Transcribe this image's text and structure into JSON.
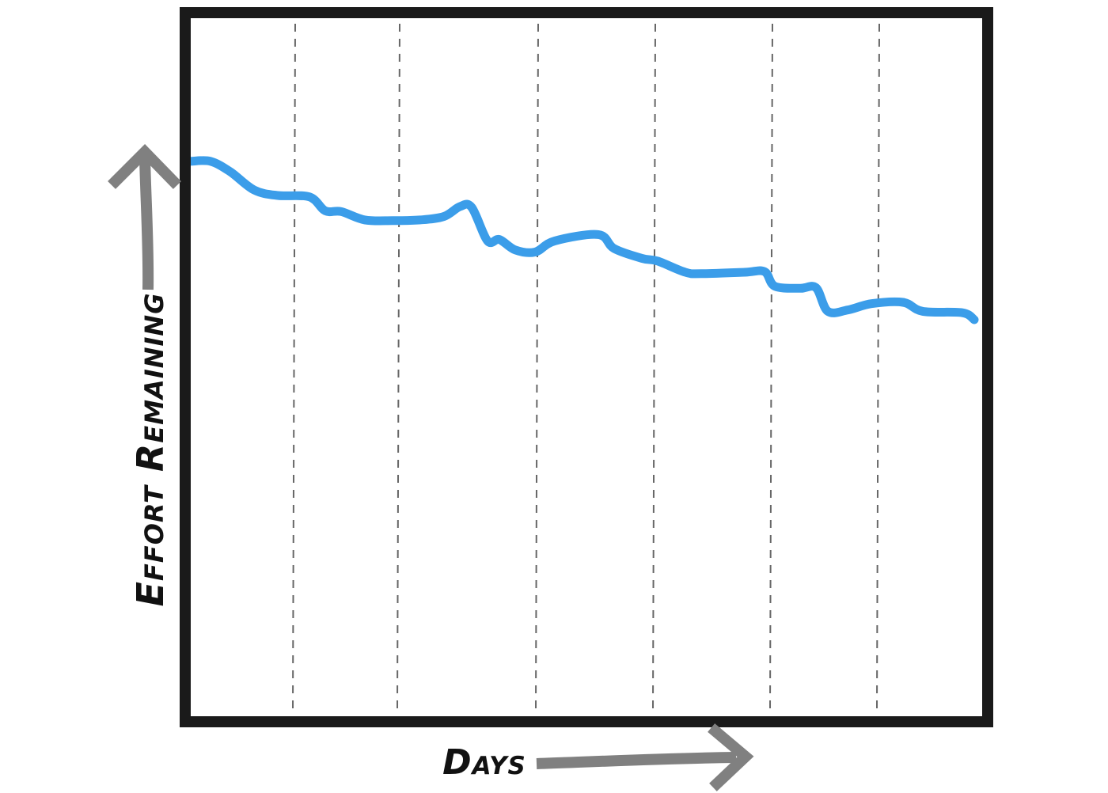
{
  "chart_data": {
    "type": "line",
    "title": "",
    "xlabel": "Days",
    "ylabel": "Effort Remaining",
    "xlim": [
      0,
      100
    ],
    "ylim": [
      0,
      100
    ],
    "vertical_gridlines_x": [
      13,
      26.2,
      43.7,
      58.5,
      73.3,
      86.8
    ],
    "grid": "vertical dashed",
    "legend": "none",
    "series": [
      {
        "points": [
          [
            0,
            79.5
          ],
          [
            2.5,
            79.5
          ],
          [
            5,
            78.0
          ],
          [
            8,
            75.4
          ],
          [
            11,
            74.6
          ],
          [
            15,
            74.4
          ],
          [
            17,
            72.4
          ],
          [
            19,
            72.3
          ],
          [
            22,
            71.1
          ],
          [
            25.5,
            71.0
          ],
          [
            29,
            71.1
          ],
          [
            32,
            71.6
          ],
          [
            34,
            73.0
          ],
          [
            35.5,
            72.9
          ],
          [
            37.5,
            68.1
          ],
          [
            39,
            68.3
          ],
          [
            41,
            66.8
          ],
          [
            43.5,
            66.5
          ],
          [
            46,
            68.1
          ],
          [
            51.5,
            69.0
          ],
          [
            53.5,
            67.0
          ],
          [
            57,
            65.6
          ],
          [
            59,
            65.2
          ],
          [
            62.5,
            63.6
          ],
          [
            64.5,
            63.4
          ],
          [
            70,
            63.6
          ],
          [
            72.5,
            63.7
          ],
          [
            73.8,
            61.6
          ],
          [
            77,
            61.3
          ],
          [
            79,
            61.4
          ],
          [
            80.5,
            58.0
          ],
          [
            83,
            58.2
          ],
          [
            86,
            59.1
          ],
          [
            90,
            59.3
          ],
          [
            92.5,
            58.0
          ],
          [
            97.5,
            57.8
          ],
          [
            99,
            56.8
          ]
        ]
      }
    ],
    "colors": {
      "line": "#3b9de9",
      "frame": "#1a1a1a",
      "grid": "#666666",
      "arrows": "#808080",
      "text": "#111111"
    }
  }
}
